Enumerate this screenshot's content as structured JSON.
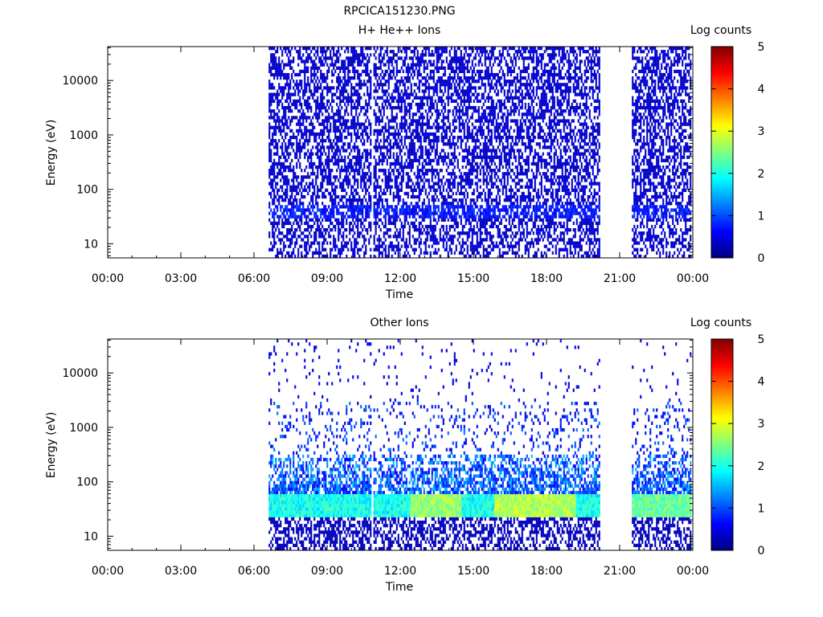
{
  "figure_title": "RPCICA151230.PNG",
  "colors": {
    "blue": "#0014c8",
    "colormap": [
      "#00007f",
      "#0000ff",
      "#007fff",
      "#00ffff",
      "#7fff7f",
      "#ffff00",
      "#ff7f00",
      "#ff0000",
      "#7f0000"
    ]
  },
  "chart_data": [
    {
      "type": "heatmap",
      "title": "H+ He++ Ions",
      "xlabel": "Time",
      "ylabel": "Energy (eV)",
      "x_ticks": [
        "00:00",
        "03:00",
        "06:00",
        "09:00",
        "12:00",
        "15:00",
        "18:00",
        "21:00",
        "00:00"
      ],
      "x_range_hours": [
        0,
        24
      ],
      "y_scale": "log",
      "y_range": [
        5.5,
        42000
      ],
      "y_ticks": [
        10,
        100,
        1000,
        10000
      ],
      "y_tick_labels": [
        "10",
        "100",
        "1000",
        "10000"
      ],
      "colorbar": {
        "label": "Log counts",
        "range": [
          0,
          5
        ],
        "ticks": [
          "0",
          "1",
          "2",
          "3",
          "4",
          "5"
        ],
        "colormap": "jet"
      },
      "data_intervals_hours": [
        [
          6.6,
          10.8
        ],
        [
          10.9,
          11.05
        ],
        [
          11.1,
          20.15
        ],
        [
          21.5,
          23.95
        ]
      ],
      "features": [
        {
          "description": "sparse low counts (log ~0.3) across all energies during data intervals"
        },
        {
          "description": "slightly enhanced band near 40 eV",
          "energy_ev": 40,
          "log_counts": 1
        }
      ]
    },
    {
      "type": "heatmap",
      "title": "Other Ions",
      "xlabel": "Time",
      "ylabel": "Energy (eV)",
      "x_ticks": [
        "00:00",
        "03:00",
        "06:00",
        "09:00",
        "12:00",
        "15:00",
        "18:00",
        "21:00",
        "00:00"
      ],
      "x_range_hours": [
        0,
        24
      ],
      "y_scale": "log",
      "y_range": [
        5.5,
        42000
      ],
      "y_ticks": [
        10,
        100,
        1000,
        10000
      ],
      "y_tick_labels": [
        "10",
        "100",
        "1000",
        "10000"
      ],
      "colorbar": {
        "label": "Log counts",
        "range": [
          0,
          5
        ],
        "ticks": [
          "0",
          "1",
          "2",
          "3",
          "4",
          "5"
        ],
        "colormap": "jet"
      },
      "data_intervals_hours": [
        [
          6.6,
          10.8
        ],
        [
          10.9,
          11.05
        ],
        [
          11.1,
          20.15
        ],
        [
          21.5,
          23.95
        ]
      ],
      "features": [
        {
          "description": "intense band between ~22 and ~55 eV",
          "energy_range_ev": [
            22,
            55
          ],
          "log_counts": 2.2
        },
        {
          "description": "band peaks (yellow/orange) around 13:00 and 16:00-19:00",
          "log_counts_peak": 3.1
        },
        {
          "description": "weaker emission 60-300 eV",
          "log_counts": 1.0
        },
        {
          "description": "scattered events 300-30000 eV",
          "log_counts": 0.4
        }
      ]
    }
  ]
}
